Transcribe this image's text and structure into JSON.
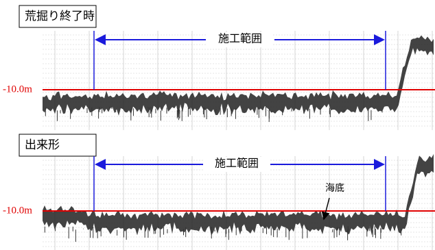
{
  "panels": [
    {
      "title": "荒掘り終了時",
      "range_label": "施工範囲",
      "depth_label": "-10.0m"
    },
    {
      "title": "出来形",
      "range_label": "施工範囲",
      "depth_label": "-10.0m",
      "annotation": "海底"
    }
  ]
}
